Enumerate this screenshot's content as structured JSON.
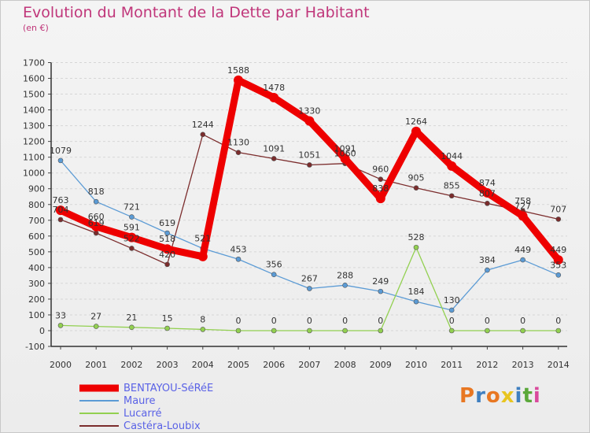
{
  "header": {
    "title": "Evolution du Montant de la Dette par Habitant",
    "subtitle": "(en €)"
  },
  "logo": {
    "letters": [
      "P",
      "r",
      "o",
      "x",
      "i",
      "t",
      "i"
    ],
    "colors": [
      "#e87722",
      "#3f7fc0",
      "#e87722",
      "#e8c520",
      "#3f7fc0",
      "#5aa83a",
      "#d94a9c"
    ]
  },
  "chart_data": {
    "type": "line",
    "title": "Evolution du Montant de la Dette par Habitant",
    "subtitle": "(en €)",
    "xlabel": "",
    "ylabel": "",
    "x": [
      "2000",
      "2001",
      "2002",
      "2003",
      "2004",
      "2005",
      "2006",
      "2007",
      "2008",
      "2009",
      "2010",
      "2011",
      "2012",
      "2013",
      "2014"
    ],
    "ylim": [
      -100,
      1700
    ],
    "yticks": [
      -100,
      0,
      100,
      200,
      300,
      400,
      500,
      600,
      700,
      800,
      900,
      1000,
      1100,
      1200,
      1300,
      1400,
      1500,
      1600,
      1700
    ],
    "grid": "dashed-horizontal",
    "legend": "bottom-left",
    "series": [
      {
        "name": "BENTAYOU-SéRéE",
        "color": "#ee0000",
        "values": [
          763,
          660,
          591,
          518,
          470,
          1588,
          1478,
          1330,
          1091,
          838,
          1264,
          1044,
          874,
          727,
          449
        ]
      },
      {
        "name": "Maure",
        "color": "#5b9bd5",
        "values": [
          1079,
          818,
          721,
          619,
          521,
          453,
          356,
          267,
          288,
          249,
          184,
          130,
          384,
          449,
          353
        ]
      },
      {
        "name": "Lucarré",
        "color": "#92d050",
        "values": [
          33,
          27,
          21,
          15,
          8,
          0,
          0,
          0,
          0,
          0,
          528,
          0,
          0,
          0,
          0
        ]
      },
      {
        "name": "Castéra-Loubix",
        "color": "#7b2c2c",
        "values": [
          704,
          619,
          522,
          420,
          1244,
          1130,
          1091,
          1051,
          1060,
          960,
          905,
          855,
          807,
          758,
          707
        ]
      }
    ],
    "data_labels": [
      [
        "763",
        "660",
        "591",
        "518",
        "",
        "1588",
        "1478",
        "1330",
        "1091",
        "838",
        "1264",
        "1044",
        "874",
        "727",
        "449"
      ],
      [
        "1079",
        "818",
        "721",
        "619",
        "521",
        "453",
        "356",
        "267",
        "288",
        "249",
        "184",
        "130",
        "384",
        "449",
        "353"
      ],
      [
        "33",
        "27",
        "21",
        "15",
        "8",
        "0",
        "0",
        "0",
        "0",
        "0",
        "528",
        "0",
        "0",
        "0",
        "0"
      ],
      [
        "704",
        "619",
        "522",
        "420",
        "1244",
        "1130",
        "1091",
        "1051",
        "1060",
        "960",
        "905",
        "855",
        "807",
        "758",
        "707"
      ]
    ]
  }
}
